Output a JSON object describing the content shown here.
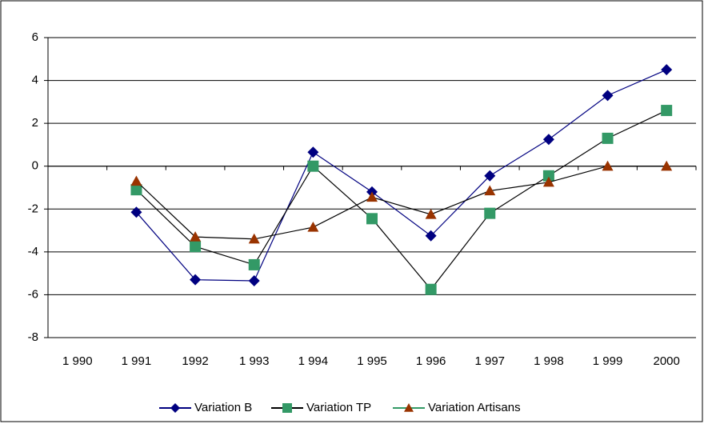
{
  "chart_data": {
    "type": "line",
    "categories": [
      "1 990",
      "1 991",
      "1992",
      "1 993",
      "1 994",
      "1 995",
      "1 996",
      "1 997",
      "1 998",
      "1 999",
      "2000"
    ],
    "series": [
      {
        "name": "Variation B",
        "color": "#000080",
        "line_color": "#000080",
        "marker": "diamond",
        "values": [
          null,
          -2.15,
          -5.3,
          -5.35,
          0.65,
          -1.2,
          -3.25,
          -0.45,
          1.25,
          3.3,
          4.5
        ]
      },
      {
        "name": "Variation TP",
        "color": "#339966",
        "line_color": "#000000",
        "marker": "square",
        "values": [
          null,
          -1.1,
          -3.75,
          -4.6,
          0,
          -2.45,
          -5.75,
          -2.2,
          -0.45,
          1.3,
          2.6
        ]
      },
      {
        "name": "Variation Artisans",
        "color": "#993300",
        "line_color": "#000000",
        "marker": "triangle",
        "values": [
          null,
          -0.7,
          -3.3,
          -3.4,
          -2.85,
          -1.45,
          -2.25,
          -1.15,
          -0.75,
          0,
          0
        ]
      }
    ],
    "ylim": [
      -8,
      6
    ],
    "yticks": [
      -8,
      -6,
      -4,
      -2,
      0,
      2,
      4,
      6
    ],
    "grid": true,
    "legend": "bottom"
  }
}
